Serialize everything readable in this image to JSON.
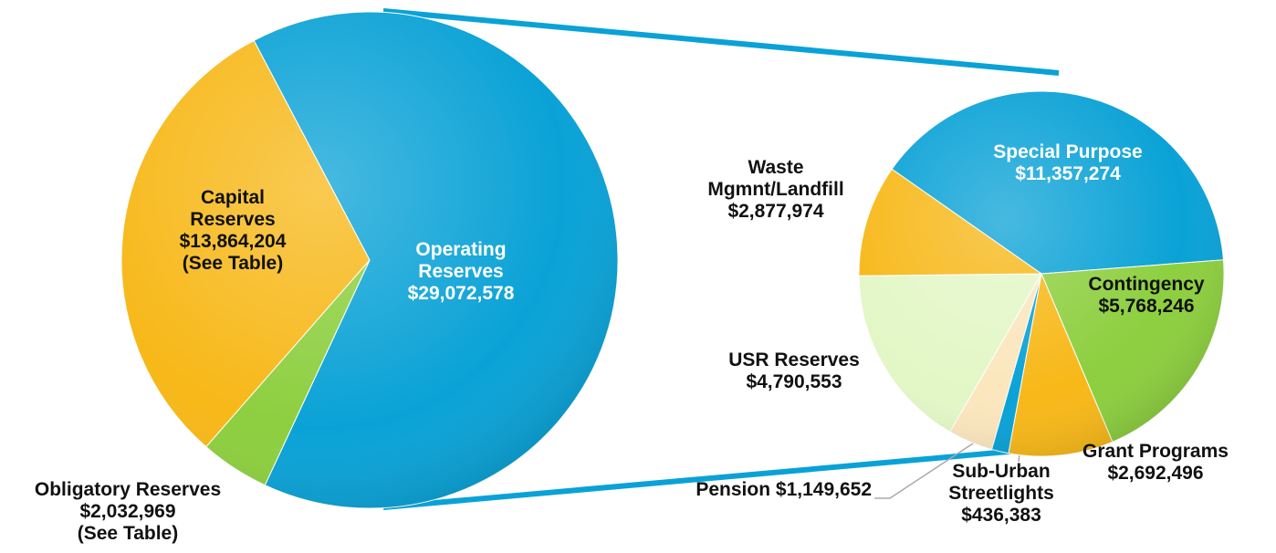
{
  "chart_data": [
    {
      "type": "pie",
      "categories": [
        "Operating Reserves",
        "Obligatory Reserves",
        "Capital Reserves"
      ],
      "values": [
        29072578,
        2032969,
        13864204
      ],
      "value_labels": [
        "$29,072,578",
        "$2,032,969",
        "$13,864,204"
      ],
      "notes": [
        null,
        "(See Table)",
        "(See Table)"
      ],
      "colors": [
        "#0aa2d6",
        "#8dcf3f",
        "#f7b818"
      ]
    },
    {
      "type": "pie",
      "categories": [
        "Special Purpose",
        "Contingency",
        "Grant Programs",
        "Sub-Urban Streetlights",
        "Pension",
        "USR Reserves",
        "Waste Mgmnt/Landfill"
      ],
      "values": [
        11357274,
        5768246,
        2692496,
        436383,
        1149652,
        4790553,
        2877974
      ],
      "value_labels": [
        "$11,357,274",
        "$5,768,246",
        "$2,692,496",
        "$436,383",
        "$1,149,652",
        "$4,790,553",
        "$2,877,974"
      ],
      "colors": [
        "#0aa2d6",
        "#8dcf3f",
        "#f7b818",
        "#0aa2d6",
        "#fbe6bd",
        "#e3f7c6",
        "#f7b818"
      ]
    }
  ]
}
